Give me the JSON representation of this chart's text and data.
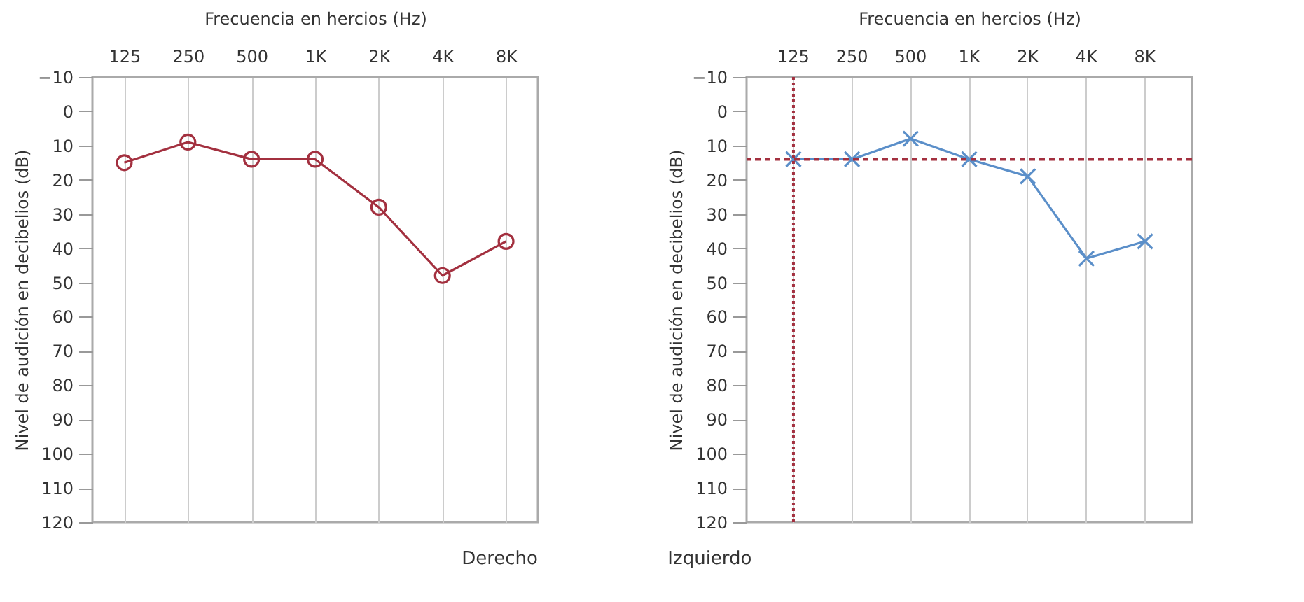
{
  "chart_data": [
    {
      "type": "line",
      "xlabel": "Frecuencia en hercios (Hz)",
      "ylabel": "Nivel de audición en decibelios (dB)",
      "categories": [
        "125",
        "250",
        "500",
        "1K",
        "2K",
        "4K",
        "8K"
      ],
      "ylim": [
        120,
        -10
      ],
      "yticks": [
        -10,
        0,
        10,
        20,
        30,
        40,
        50,
        60,
        70,
        80,
        90,
        100,
        110,
        120
      ],
      "grid": "x",
      "marker": "circle",
      "series": [
        {
          "color": "#a3303f",
          "values": [
            15,
            9,
            14,
            14,
            28,
            48,
            38
          ]
        }
      ],
      "annotations": [
        "Derecho"
      ]
    },
    {
      "type": "line",
      "xlabel": "Frecuencia en hercios (Hz)",
      "ylabel": "Nivel de audición en decibelios (dB)",
      "categories": [
        "125",
        "250",
        "500",
        "1K",
        "2K",
        "4K",
        "8K"
      ],
      "ylim": [
        120,
        -10
      ],
      "yticks": [
        -10,
        0,
        10,
        20,
        30,
        40,
        50,
        60,
        70,
        80,
        90,
        100,
        110,
        120
      ],
      "grid": "x",
      "marker": "cross",
      "series": [
        {
          "color": "#5b8fc9",
          "values": [
            14,
            14,
            8,
            14,
            19,
            43,
            38
          ]
        }
      ],
      "ref_lines": [
        {
          "axis": "y",
          "value": 14,
          "color": "#a3303f",
          "line_style": "dashed"
        },
        {
          "axis": "x",
          "value": "125",
          "color": "#a3303f",
          "line_style": "dotted"
        }
      ],
      "annotations": [
        "Izquierdo"
      ]
    }
  ]
}
